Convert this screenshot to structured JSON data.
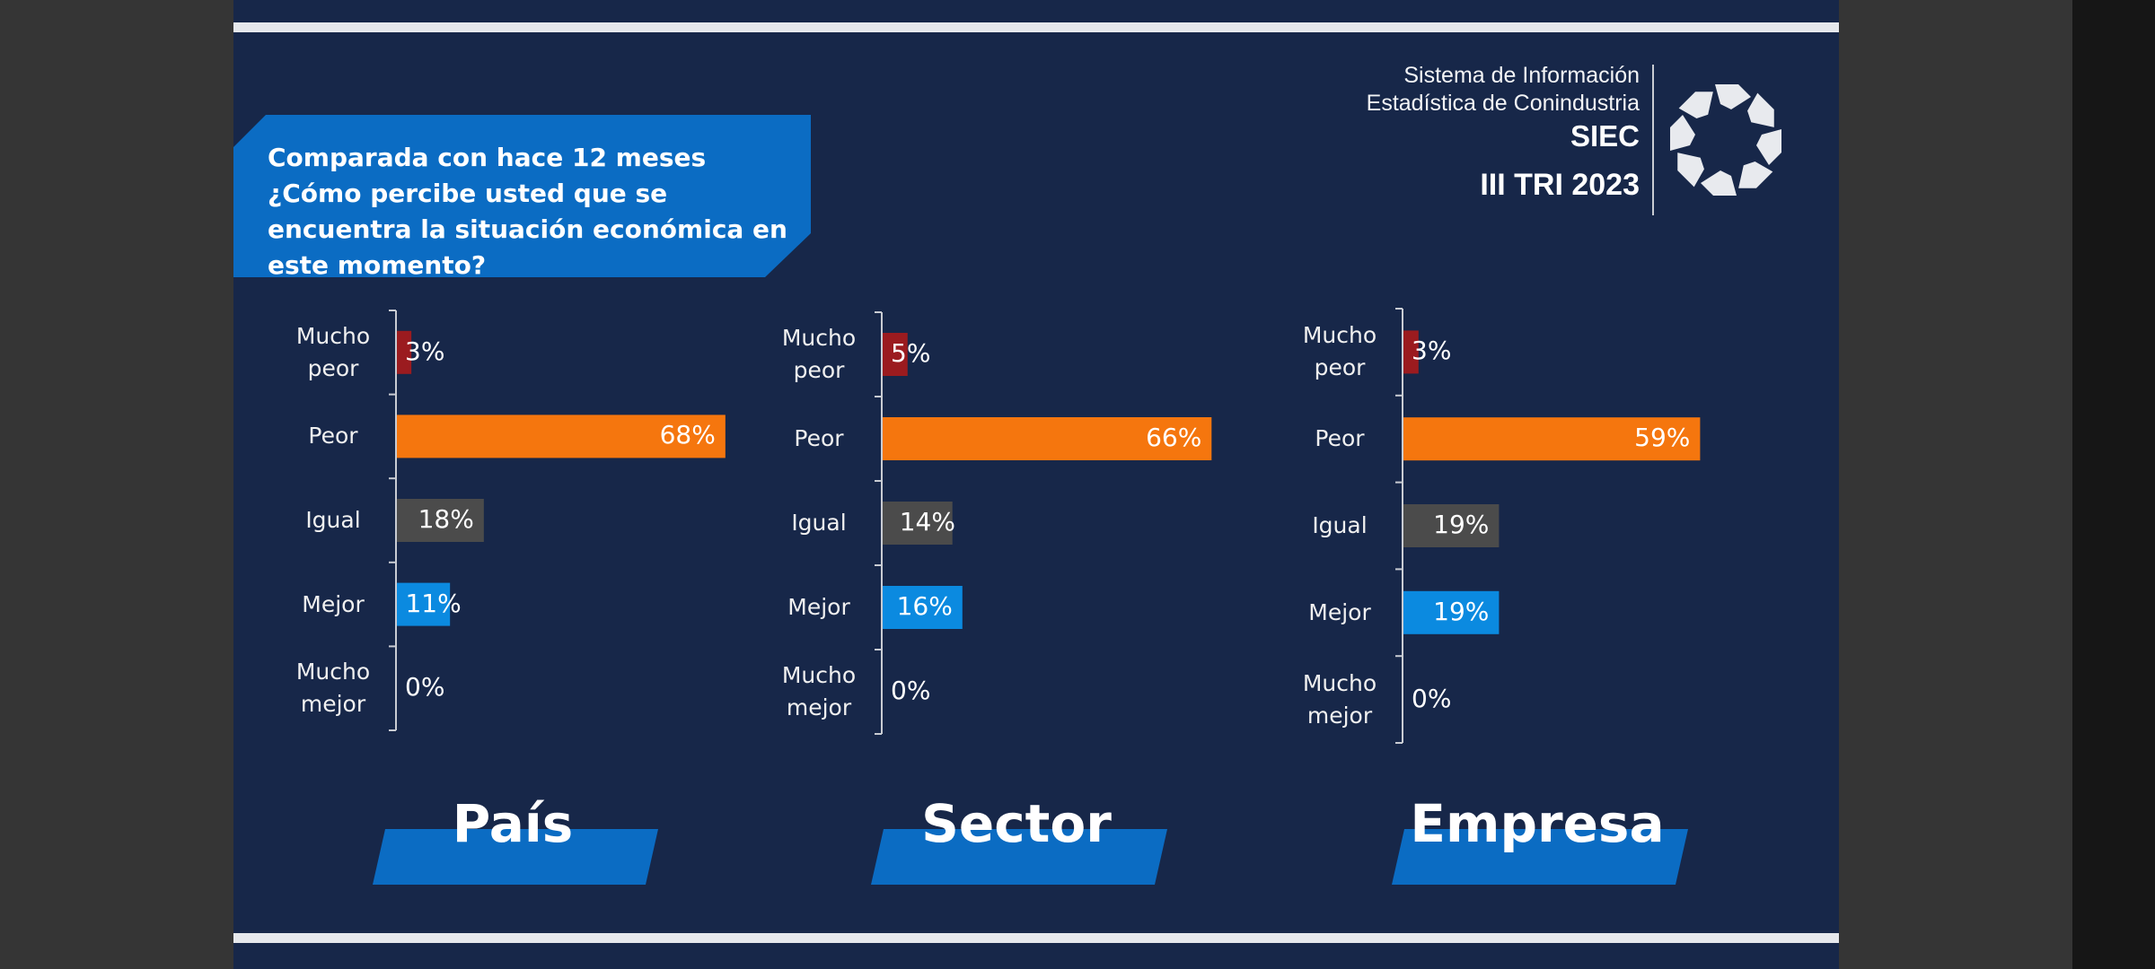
{
  "question": "Comparada con hace 12 meses ¿Cómo percibe usted que se encuentra la situación económica en este momento?",
  "brand": {
    "line1": "Sistema de Información",
    "line2": "Estadística de Conindustria",
    "acronym": "SIEC",
    "period": "III TRI 2023"
  },
  "colors": {
    "background": "#172749",
    "mucho_peor": "#9b1b1f",
    "peor": "#f5760e",
    "igual": "#4b4b4b",
    "mejor": "#0b8ae0",
    "mucho_mejor": "#172749",
    "label_band": "#0b6cc3"
  },
  "chart_data": [
    {
      "type": "bar",
      "orientation": "horizontal",
      "panel_label": "País",
      "categories": [
        "Mucho peor",
        "Peor",
        "Igual",
        "Mejor",
        "Mucho mejor"
      ],
      "values": [
        3,
        68,
        18,
        11,
        0
      ],
      "value_labels": [
        "3%",
        "68%",
        "18%",
        "11%",
        "0%"
      ],
      "xlim": [
        0,
        100
      ]
    },
    {
      "type": "bar",
      "orientation": "horizontal",
      "panel_label": "Sector",
      "categories": [
        "Mucho peor",
        "Peor",
        "Igual",
        "Mejor",
        "Mucho mejor"
      ],
      "values": [
        5,
        66,
        14,
        16,
        0
      ],
      "value_labels": [
        "5%",
        "66%",
        "14%",
        "16%",
        "0%"
      ],
      "xlim": [
        0,
        100
      ]
    },
    {
      "type": "bar",
      "orientation": "horizontal",
      "panel_label": "Empresa",
      "categories": [
        "Mucho peor",
        "Peor",
        "Igual",
        "Mejor",
        "Mucho mejor"
      ],
      "values": [
        3,
        59,
        19,
        19,
        0
      ],
      "value_labels": [
        "3%",
        "59%",
        "19%",
        "19%",
        "0%"
      ],
      "xlim": [
        0,
        100
      ]
    }
  ]
}
